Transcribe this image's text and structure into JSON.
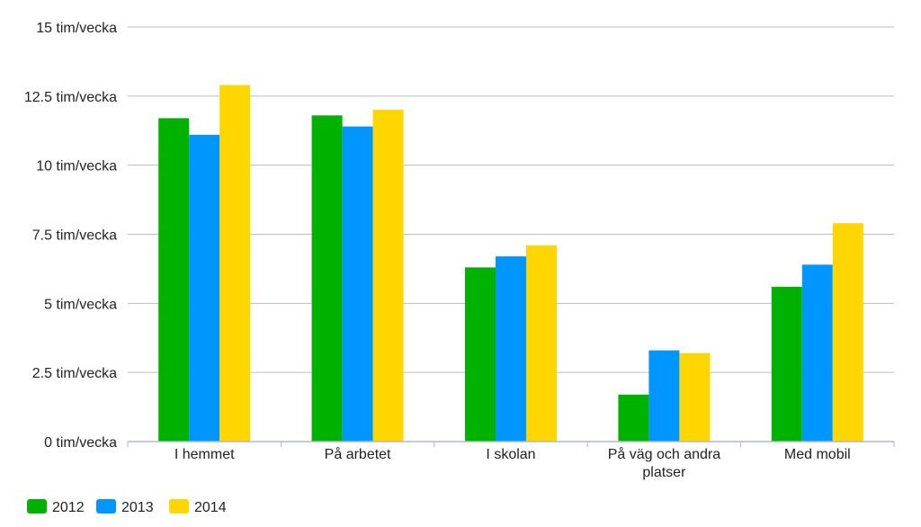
{
  "chart_data": {
    "type": "bar",
    "categories": [
      [
        "I hemmet"
      ],
      [
        "På arbetet"
      ],
      [
        "I skolan"
      ],
      [
        "På väg och andra",
        "platser"
      ],
      [
        "Med mobil"
      ]
    ],
    "series": [
      {
        "name": "2012",
        "color": "#00b200",
        "values": [
          11.7,
          11.8,
          6.3,
          1.7,
          5.6
        ]
      },
      {
        "name": "2013",
        "color": "#0096ff",
        "values": [
          11.1,
          11.4,
          6.7,
          3.3,
          6.4
        ]
      },
      {
        "name": "2014",
        "color": "#ffd600",
        "values": [
          12.9,
          12.0,
          7.1,
          3.2,
          7.9
        ]
      }
    ],
    "yticks": [
      0,
      2.5,
      5,
      7.5,
      10,
      12.5,
      15
    ],
    "ytick_labels": [
      "0 tim/vecka",
      "2.5 tim/vecka",
      "5 tim/vecka",
      "7.5 tim/vecka",
      "10 tim/vecka",
      "12.5 tim/vecka",
      "15 tim/vecka"
    ],
    "ylim": [
      0,
      15
    ],
    "grid": true,
    "legend_position": "bottom-left",
    "title": "",
    "xlabel": "",
    "ylabel": ""
  }
}
